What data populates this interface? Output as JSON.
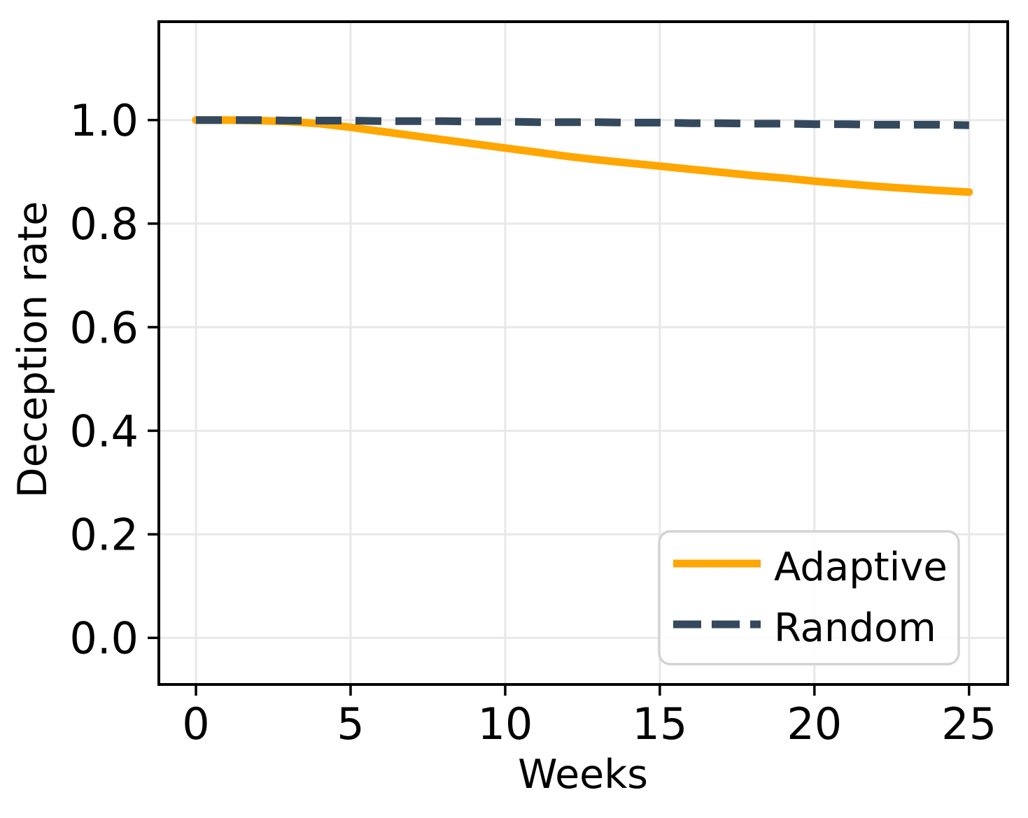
{
  "chart_data": {
    "type": "line",
    "title": "",
    "xlabel": "Weeks",
    "ylabel": "Deception rate",
    "x": [
      0,
      1,
      2,
      3,
      4,
      5,
      6,
      7,
      8,
      9,
      10,
      11,
      12,
      13,
      14,
      15,
      16,
      17,
      18,
      19,
      20,
      21,
      22,
      23,
      24,
      25
    ],
    "series": [
      {
        "name": "Adaptive",
        "color": "#FFA600",
        "line_style": "solid",
        "values": [
          1.0,
          1.0,
          0.999,
          0.997,
          0.993,
          0.986,
          0.978,
          0.97,
          0.962,
          0.954,
          0.946,
          0.938,
          0.93,
          0.923,
          0.917,
          0.911,
          0.905,
          0.899,
          0.893,
          0.888,
          0.882,
          0.877,
          0.872,
          0.868,
          0.864,
          0.861
        ]
      },
      {
        "name": "Random",
        "color": "#34495E",
        "line_style": "dashed",
        "values": [
          1.0,
          1.0,
          1.0,
          0.999,
          0.999,
          0.999,
          0.998,
          0.998,
          0.998,
          0.997,
          0.997,
          0.996,
          0.996,
          0.996,
          0.995,
          0.995,
          0.994,
          0.994,
          0.993,
          0.993,
          0.992,
          0.992,
          0.991,
          0.991,
          0.991,
          0.99
        ]
      }
    ],
    "xticks": {
      "values": [
        0,
        5,
        10,
        15,
        20,
        25
      ],
      "labels": [
        "0",
        "5",
        "10",
        "15",
        "20",
        "25"
      ]
    },
    "yticks": {
      "values": [
        0.0,
        0.2,
        0.4,
        0.6,
        0.8,
        1.0
      ],
      "labels": [
        "0.0",
        "0.2",
        "0.4",
        "0.6",
        "0.8",
        "1.0"
      ]
    },
    "xlim": [
      -1.2,
      26.25
    ],
    "ylim": [
      -0.09,
      1.19
    ],
    "grid": true,
    "legend": {
      "position": "lower right",
      "entries": [
        "Adaptive",
        "Random"
      ]
    },
    "colors": {
      "background": "#FFFFFF",
      "grid": "#E8E8E8",
      "spine": "#000000",
      "tick": "#000000",
      "text": "#000000",
      "legend_border": "#D3D3D3",
      "legend_background": "#FFFFFF"
    }
  }
}
